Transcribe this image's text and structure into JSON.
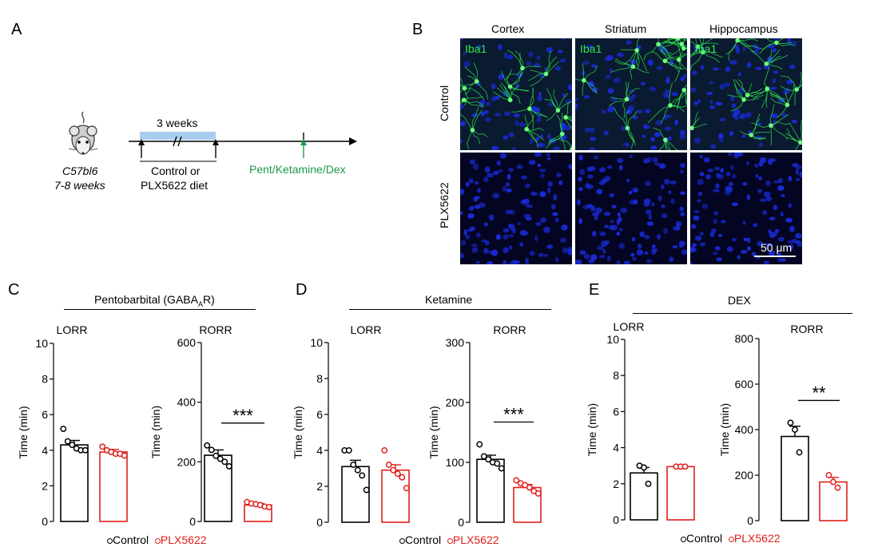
{
  "panels": {
    "A": {
      "label": "A",
      "strain": "C57bl6",
      "age": "7-8 weeks",
      "duration": "3 weeks",
      "diet": "Control or",
      "diet2": "PLX5622 diet",
      "treatment": "Pent/Ketamine/Dex"
    },
    "B": {
      "label": "B",
      "columns": [
        "Cortex",
        "Striatum",
        "Hippocampus"
      ],
      "rows": [
        "Control",
        "PLX5622"
      ],
      "stain": "Iba1",
      "scalebar": "50 μm"
    },
    "C": {
      "label": "C",
      "title": "Pentobarbital (GABA",
      "title_sub": "A",
      "title_end": "R)"
    },
    "D": {
      "label": "D",
      "title": "Ketamine"
    },
    "E": {
      "label": "E",
      "title": "DEX"
    }
  },
  "legend": {
    "control": "Control",
    "plx": "PLX5622"
  },
  "colors": {
    "control": "#000000",
    "plx": "#e0201a",
    "iba1": "#2ee84a",
    "nuclei": "#1a2ad6",
    "arrow_green": "#1a9a4a"
  },
  "chart_data": [
    {
      "type": "bar",
      "panel": "C",
      "title": "LORR",
      "ylabel": "Time (min)",
      "ylim": [
        0,
        10
      ],
      "yticks": [
        0,
        2,
        4,
        6,
        8,
        10
      ],
      "categories": [
        "Control",
        "PLX5622"
      ],
      "values": [
        4.3,
        3.9
      ],
      "sem": [
        0.25,
        0.15
      ],
      "points": [
        [
          5.2,
          4.5,
          4.3,
          4.1,
          4.0,
          4.0
        ],
        [
          4.2,
          4.0,
          3.9,
          3.8,
          3.8,
          3.7
        ]
      ]
    },
    {
      "type": "bar",
      "panel": "C",
      "title": "RORR",
      "ylabel": "Time (min)",
      "ylim": [
        0,
        600
      ],
      "yticks": [
        0,
        200,
        400,
        600
      ],
      "categories": [
        "Control",
        "PLX5622"
      ],
      "values": [
        222,
        55
      ],
      "sem": [
        18,
        6
      ],
      "significance": "***",
      "points": [
        [
          255,
          240,
          220,
          210,
          200,
          185
        ],
        [
          65,
          60,
          58,
          55,
          50,
          48
        ]
      ]
    },
    {
      "type": "bar",
      "panel": "D",
      "title": "LORR",
      "ylabel": "Time (min)",
      "ylim": [
        0,
        10
      ],
      "yticks": [
        0,
        2,
        4,
        6,
        8,
        10
      ],
      "categories": [
        "Control",
        "PLX5622"
      ],
      "values": [
        3.1,
        2.9
      ],
      "sem": [
        0.35,
        0.3
      ],
      "points": [
        [
          4.0,
          4.0,
          3.2,
          2.9,
          2.6,
          1.8
        ],
        [
          4.0,
          3.2,
          2.9,
          2.7,
          2.5,
          1.9
        ]
      ]
    },
    {
      "type": "bar",
      "panel": "D",
      "title": "RORR",
      "ylabel": "Time (min)",
      "ylim": [
        0,
        300
      ],
      "yticks": [
        0,
        100,
        200,
        300
      ],
      "categories": [
        "Control",
        "PLX5622"
      ],
      "values": [
        105,
        58
      ],
      "sem": [
        7,
        5
      ],
      "significance": "***",
      "points": [
        [
          130,
          110,
          105,
          100,
          98,
          90
        ],
        [
          70,
          65,
          62,
          58,
          52,
          48
        ]
      ]
    },
    {
      "type": "bar",
      "panel": "E",
      "title": "LORR",
      "ylabel": "Time (min)",
      "ylim": [
        0,
        10
      ],
      "yticks": [
        0,
        2,
        4,
        6,
        8,
        10
      ],
      "categories": [
        "Control",
        "PLX5622"
      ],
      "values": [
        2.6,
        2.95
      ],
      "sem": [
        0.3,
        0.05
      ],
      "points": [
        [
          3.0,
          2.9,
          2.0
        ],
        [
          2.95,
          2.95,
          2.95
        ]
      ]
    },
    {
      "type": "bar",
      "panel": "E",
      "title": "RORR",
      "ylabel": "Time (min)",
      "ylim": [
        0,
        800
      ],
      "yticks": [
        0,
        200,
        400,
        600,
        800
      ],
      "categories": [
        "Control",
        "PLX5622"
      ],
      "values": [
        370,
        170
      ],
      "sem": [
        45,
        20
      ],
      "significance": "**",
      "points": [
        [
          430,
          400,
          300
        ],
        [
          200,
          170,
          145
        ]
      ]
    }
  ]
}
